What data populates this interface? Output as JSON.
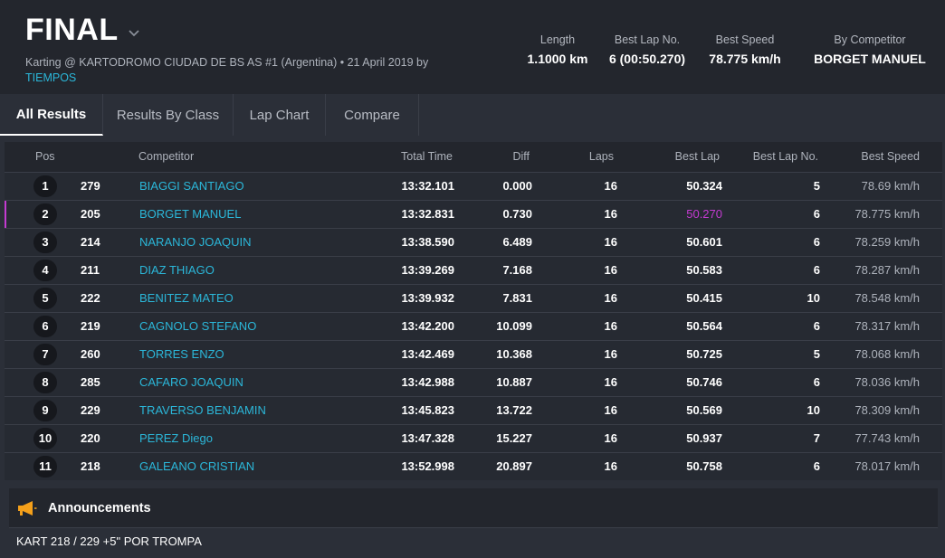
{
  "header": {
    "title": "FINAL",
    "subtitle": "Karting @ KARTODROMO CIUDAD DE BS AS #1 (Argentina) • 21 April 2019 by",
    "subtitle_link": "TIEMPOS",
    "stats": [
      {
        "label": "Length",
        "value": "1.1000 km"
      },
      {
        "label": "Best Lap No.",
        "value": "6 (00:50.270)"
      },
      {
        "label": "Best Speed",
        "value": "78.775 km/h"
      },
      {
        "label": "By Competitor",
        "value": "BORGET MANUEL"
      }
    ]
  },
  "tabs": [
    "All Results",
    "Results By Class",
    "Lap Chart",
    "Compare"
  ],
  "table": {
    "headers": {
      "pos": "Pos",
      "competitor": "Competitor",
      "total": "Total Time",
      "diff": "Diff",
      "laps": "Laps",
      "best": "Best Lap",
      "best_no": "Best Lap No.",
      "speed": "Best Speed"
    },
    "rows": [
      {
        "pos": "1",
        "no": "279",
        "name": "BIAGGI SANTIAGO",
        "total": "13:32.101",
        "diff": "0.000",
        "laps": "16",
        "best": "50.324",
        "best_no": "5",
        "speed": "78.69 km/h"
      },
      {
        "pos": "2",
        "no": "205",
        "name": "BORGET MANUEL",
        "total": "13:32.831",
        "diff": "0.730",
        "laps": "16",
        "best": "50.270",
        "best_no": "6",
        "speed": "78.775 km/h"
      },
      {
        "pos": "3",
        "no": "214",
        "name": "NARANJO JOAQUIN",
        "total": "13:38.590",
        "diff": "6.489",
        "laps": "16",
        "best": "50.601",
        "best_no": "6",
        "speed": "78.259 km/h"
      },
      {
        "pos": "4",
        "no": "211",
        "name": "DIAZ THIAGO",
        "total": "13:39.269",
        "diff": "7.168",
        "laps": "16",
        "best": "50.583",
        "best_no": "6",
        "speed": "78.287 km/h"
      },
      {
        "pos": "5",
        "no": "222",
        "name": "BENITEZ MATEO",
        "total": "13:39.932",
        "diff": "7.831",
        "laps": "16",
        "best": "50.415",
        "best_no": "10",
        "speed": "78.548 km/h"
      },
      {
        "pos": "6",
        "no": "219",
        "name": "CAGNOLO STEFANO",
        "total": "13:42.200",
        "diff": "10.099",
        "laps": "16",
        "best": "50.564",
        "best_no": "6",
        "speed": "78.317 km/h"
      },
      {
        "pos": "7",
        "no": "260",
        "name": "TORRES ENZO",
        "total": "13:42.469",
        "diff": "10.368",
        "laps": "16",
        "best": "50.725",
        "best_no": "5",
        "speed": "78.068 km/h"
      },
      {
        "pos": "8",
        "no": "285",
        "name": "CAFARO JOAQUIN",
        "total": "13:42.988",
        "diff": "10.887",
        "laps": "16",
        "best": "50.746",
        "best_no": "6",
        "speed": "78.036 km/h"
      },
      {
        "pos": "9",
        "no": "229",
        "name": "TRAVERSO BENJAMIN",
        "total": "13:45.823",
        "diff": "13.722",
        "laps": "16",
        "best": "50.569",
        "best_no": "10",
        "speed": "78.309 km/h"
      },
      {
        "pos": "10",
        "no": "220",
        "name": "PEREZ Diego",
        "total": "13:47.328",
        "diff": "15.227",
        "laps": "16",
        "best": "50.937",
        "best_no": "7",
        "speed": "77.743 km/h"
      },
      {
        "pos": "11",
        "no": "218",
        "name": "GALEANO CRISTIAN",
        "total": "13:52.998",
        "diff": "20.897",
        "laps": "16",
        "best": "50.758",
        "best_no": "6",
        "speed": "78.017 km/h"
      }
    ]
  },
  "announcements": {
    "title": "Announcements",
    "icon": "megaphone-icon",
    "text": "KART 218 / 229 +5\" POR TROMPA"
  },
  "colors": {
    "accent": "#2bb7d9",
    "best_lap_highlight": "#c43bd1",
    "megaphone": "#f5a01a"
  }
}
